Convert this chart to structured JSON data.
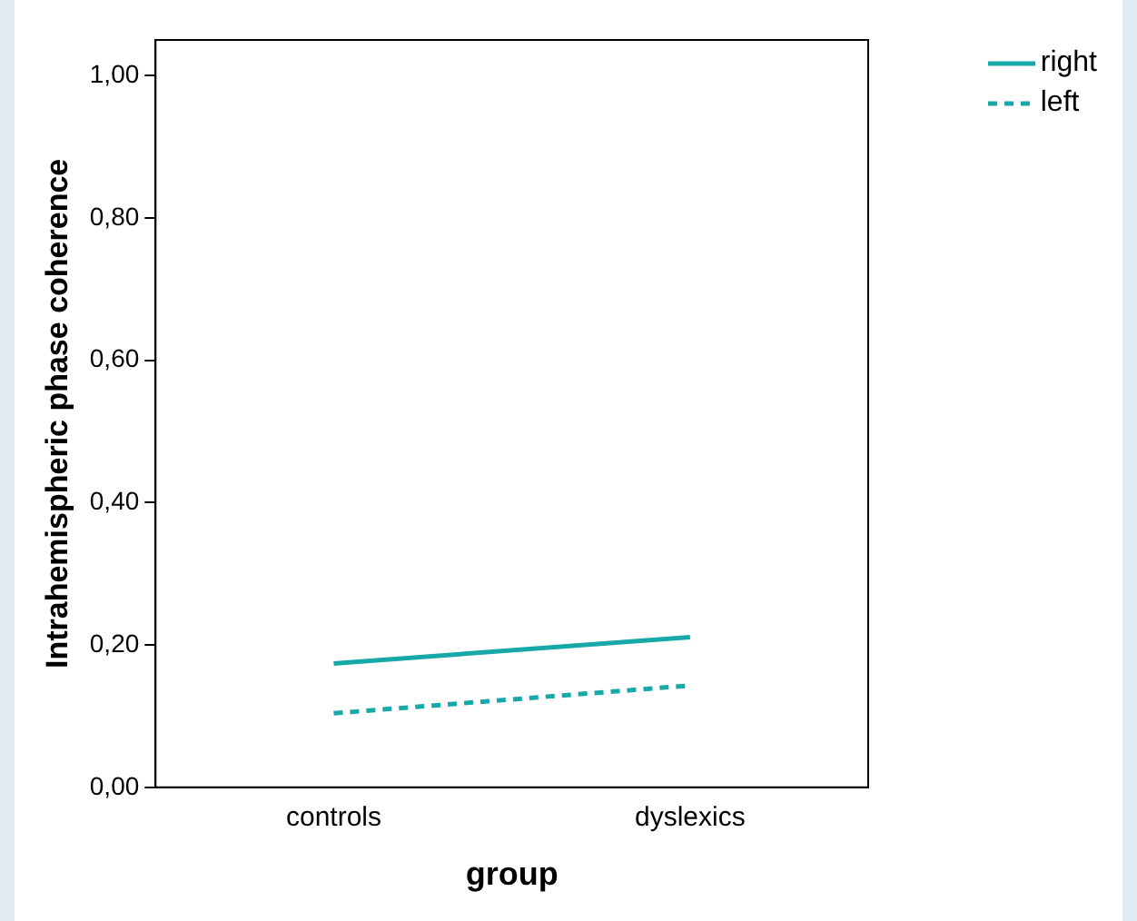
{
  "chart_data": {
    "type": "line",
    "xlabel": "group",
    "ylabel": "Intrahemispheric phase coherence",
    "categories": [
      "controls",
      "dyslexics"
    ],
    "series": [
      {
        "name": "right",
        "color": "#17a9a9",
        "values": [
          0.174,
          0.211
        ],
        "line_style": "solid"
      },
      {
        "name": "left",
        "color": "#17a9a9",
        "values": [
          0.104,
          0.143
        ],
        "line_style": "dashed"
      }
    ],
    "ylim": [
      0,
      1.05
    ],
    "yticks": [
      {
        "value": 0,
        "label": "0,00"
      },
      {
        "value": 0.2,
        "label": "0,20"
      },
      {
        "value": 0.4,
        "label": "0,40"
      },
      {
        "value": 0.6,
        "label": "0,60"
      },
      {
        "value": 0.8,
        "label": "0,80"
      },
      {
        "value": 1,
        "label": "1,00"
      }
    ],
    "grid": false,
    "legend": "top right",
    "marker": "none"
  }
}
